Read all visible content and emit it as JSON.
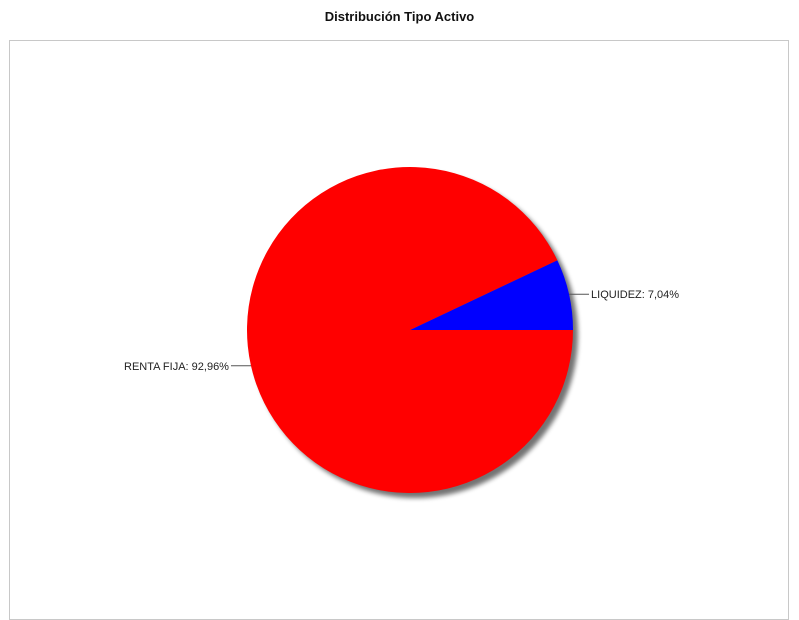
{
  "chart_data": {
    "type": "pie",
    "title": "Distribución Tipo Activo",
    "slices": [
      {
        "name": "LIQUIDEZ",
        "value": 7.04,
        "label": "LIQUIDEZ: 7,04%",
        "color": "#0000ff"
      },
      {
        "name": "RENTA FIJA",
        "value": 92.96,
        "label": "RENTA FIJA: 92,96%",
        "color": "#ff0000"
      }
    ],
    "start_angle_deg": 0,
    "direction": "counterclockwise",
    "shadow": true,
    "legend": "none",
    "background": "#ffffff",
    "frame_color": "#c8c8c8"
  }
}
